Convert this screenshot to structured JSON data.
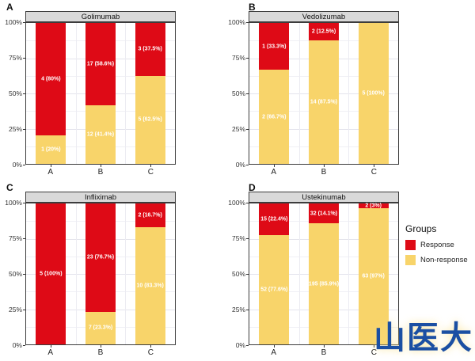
{
  "figure": {
    "background": "#ffffff",
    "watermark": {
      "text": "山医大",
      "color": "#1b4fa3"
    }
  },
  "legend": {
    "title": "Groups",
    "entries": [
      {
        "label": "Response",
        "color": "#de0a16"
      },
      {
        "label": "Non-response",
        "color": "#f8d46a"
      }
    ]
  },
  "axes": {
    "yticks": [
      "100%",
      "75%",
      "50%",
      "25%",
      "0%"
    ],
    "xticks": [
      "A",
      "B",
      "C"
    ]
  },
  "chart_data": [
    {
      "panel": "A",
      "type": "bar",
      "stacked": true,
      "title": "Golimumab",
      "categories": [
        "A",
        "B",
        "C"
      ],
      "ylim": [
        0,
        100
      ],
      "grid": true,
      "series": [
        {
          "name": "Response",
          "color": "#de0a16",
          "values": [
            80,
            58.6,
            37.5
          ],
          "labels": [
            "4 (80%)",
            "17 (58.6%)",
            "3 (37.5%)"
          ]
        },
        {
          "name": "Non-response",
          "color": "#f8d46a",
          "values": [
            20,
            41.4,
            62.5
          ],
          "labels": [
            "1 (20%)",
            "12 (41.4%)",
            "5 (62.5%)"
          ]
        }
      ]
    },
    {
      "panel": "B",
      "type": "bar",
      "stacked": true,
      "title": "Vedolizumab",
      "categories": [
        "A",
        "B",
        "C"
      ],
      "ylim": [
        0,
        100
      ],
      "grid": true,
      "series": [
        {
          "name": "Response",
          "color": "#de0a16",
          "values": [
            33.3,
            12.5,
            0
          ],
          "labels": [
            "1 (33.3%)",
            "2 (12.5%)",
            ""
          ]
        },
        {
          "name": "Non-response",
          "color": "#f8d46a",
          "values": [
            66.7,
            87.5,
            100
          ],
          "labels": [
            "2 (66.7%)",
            "14 (87.5%)",
            "5 (100%)"
          ]
        }
      ]
    },
    {
      "panel": "C",
      "type": "bar",
      "stacked": true,
      "title": "Infliximab",
      "categories": [
        "A",
        "B",
        "C"
      ],
      "ylim": [
        0,
        100
      ],
      "grid": true,
      "series": [
        {
          "name": "Response",
          "color": "#de0a16",
          "values": [
            100,
            76.7,
            16.7
          ],
          "labels": [
            "5 (100%)",
            "23 (76.7%)",
            "2 (16.7%)"
          ]
        },
        {
          "name": "Non-response",
          "color": "#f8d46a",
          "values": [
            0,
            23.3,
            83.3
          ],
          "labels": [
            "",
            "7 (23.3%)",
            "10 (83.3%)"
          ]
        }
      ]
    },
    {
      "panel": "D",
      "type": "bar",
      "stacked": true,
      "title": "Ustekinumab",
      "categories": [
        "A",
        "B",
        "C"
      ],
      "ylim": [
        0,
        100
      ],
      "grid": true,
      "series": [
        {
          "name": "Response",
          "color": "#de0a16",
          "values": [
            22.4,
            14.1,
            3.1
          ],
          "labels": [
            "15 (22.4%)",
            "32 (14.1%)",
            "2 (3%)"
          ]
        },
        {
          "name": "Non-response",
          "color": "#f8d46a",
          "values": [
            77.6,
            85.9,
            96.9
          ],
          "labels": [
            "52 (77.6%)",
            "195 (85.9%)",
            "63 (97%)"
          ]
        }
      ]
    }
  ]
}
